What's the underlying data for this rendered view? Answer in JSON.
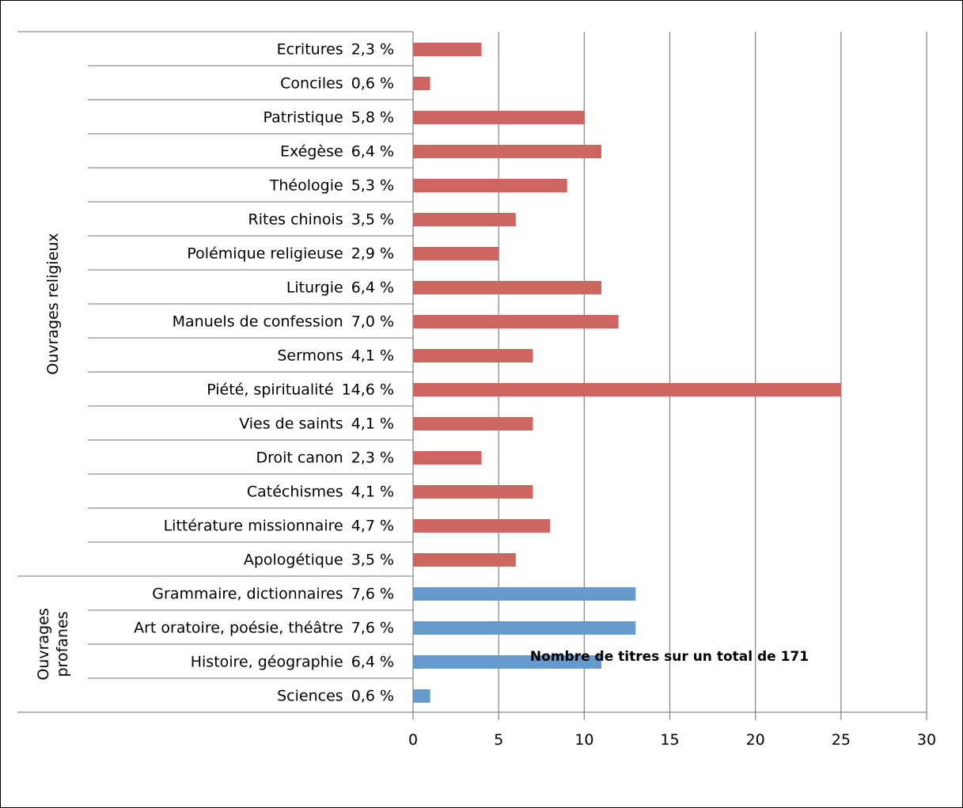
{
  "chart_data": {
    "type": "bar",
    "orientation": "horizontal",
    "xlabel": "Nombre de titres sur un total de 171",
    "xlim": [
      0,
      30
    ],
    "xticks": [
      0,
      5,
      10,
      15,
      20,
      25,
      30
    ],
    "grid": true,
    "colors": {
      "religieux": "#cd6660",
      "profanes": "#6699cc"
    },
    "groups": [
      {
        "name": "Ouvrages religieux",
        "color_key": "religieux",
        "categories": [
          {
            "label": "Ecritures",
            "percent": "2,3 %",
            "value": 4
          },
          {
            "label": "Conciles",
            "percent": "0,6 %",
            "value": 1
          },
          {
            "label": "Patristique",
            "percent": "5,8 %",
            "value": 10
          },
          {
            "label": "Exégèse",
            "percent": "6,4 %",
            "value": 11
          },
          {
            "label": "Théologie",
            "percent": "5,3 %",
            "value": 9
          },
          {
            "label": "Rites chinois",
            "percent": "3,5 %",
            "value": 6
          },
          {
            "label": "Polémique religieuse",
            "percent": "2,9 %",
            "value": 5
          },
          {
            "label": "Liturgie",
            "percent": "6,4 %",
            "value": 11
          },
          {
            "label": "Manuels de confession",
            "percent": "7,0 %",
            "value": 12
          },
          {
            "label": "Sermons",
            "percent": "4,1 %",
            "value": 7
          },
          {
            "label": "Piété, spiritualité",
            "percent": "14,6 %",
            "value": 25
          },
          {
            "label": "Vies de saints",
            "percent": "4,1 %",
            "value": 7
          },
          {
            "label": "Droit canon",
            "percent": "2,3 %",
            "value": 4
          },
          {
            "label": "Catéchismes",
            "percent": "4,1 %",
            "value": 7
          },
          {
            "label": "Littérature missionnaire",
            "percent": "4,7 %",
            "value": 8
          },
          {
            "label": "Apologétique",
            "percent": "3,5 %",
            "value": 6
          }
        ]
      },
      {
        "name": "Ouvrages profanes",
        "name_lines": [
          "Ouvrages",
          "profanes"
        ],
        "color_key": "profanes",
        "categories": [
          {
            "label": "Grammaire, dictionnaires",
            "percent": "7,6 %",
            "value": 13
          },
          {
            "label": "Art oratoire, poésie, théâtre",
            "percent": "7,6 %",
            "value": 13
          },
          {
            "label": "Histoire, géographie",
            "percent": "6,4 %",
            "value": 11
          },
          {
            "label": "Sciences",
            "percent": "0,6 %",
            "value": 1
          }
        ]
      }
    ]
  }
}
